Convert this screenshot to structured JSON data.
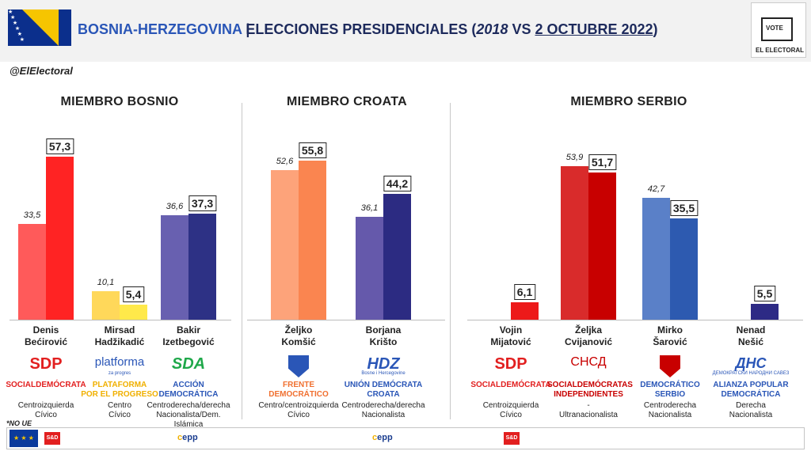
{
  "header": {
    "country": "BOSNIA-HERZEGOVINA",
    "separator": "|",
    "title_main": "ELECCIONES PRESIDENCIALES (",
    "year_old": "2018",
    "vs": " VS ",
    "date_new": "2 OCTUBRE 2022",
    "close_paren": ")",
    "logo_vote": "VOTE",
    "logo_brand": "EL ELECTORAL",
    "handle": "@ElElectoral"
  },
  "chart_data": [
    {
      "type": "bar",
      "title": "MIEMBRO BOSNIO",
      "categories": [
        "Denis Bećirović",
        "Mirsad Hadžikadić",
        "Bakir Izetbegović"
      ],
      "series": [
        {
          "name": "2018",
          "values": [
            33.5,
            10.1,
            36.6
          ]
        },
        {
          "name": "2022",
          "values": [
            57.3,
            5.4,
            37.3
          ]
        }
      ],
      "ylim": [
        0,
        60
      ]
    },
    {
      "type": "bar",
      "title": "MIEMBRO CROATA",
      "categories": [
        "Željko Komšić",
        "Borjana Krišto"
      ],
      "series": [
        {
          "name": "2018",
          "values": [
            52.6,
            36.1
          ]
        },
        {
          "name": "2022",
          "values": [
            55.8,
            44.2
          ]
        }
      ],
      "ylim": [
        0,
        60
      ]
    },
    {
      "type": "bar",
      "title": "MIEMBRO SERBIO",
      "categories": [
        "Vojin Mijatović",
        "Željka Cvijanović",
        "Mirko Šarović",
        "Nenad Nešić"
      ],
      "series": [
        {
          "name": "2018",
          "values": [
            null,
            53.9,
            42.7,
            null
          ]
        },
        {
          "name": "2022",
          "values": [
            6.1,
            51.7,
            35.5,
            5.5
          ]
        }
      ],
      "ylim": [
        0,
        60
      ]
    }
  ],
  "labels": {
    "bosnio": {
      "v2018": [
        "33,5",
        "10,1",
        "36,6"
      ],
      "v2022": [
        "57,3",
        "5,4",
        "37,3"
      ],
      "cand_first": [
        "Denis",
        "Mirsad",
        "Bakir"
      ],
      "cand_last": [
        "Bećirović",
        "Hadžikadić",
        "Izetbegović"
      ],
      "logo": [
        "SDP",
        "platforma",
        "SDA"
      ],
      "logo_sub": [
        "",
        "za progres",
        ""
      ],
      "party_line1": [
        "SOCIALDEMÓCRATA",
        "PLATAFORMA",
        "ACCIÓN"
      ],
      "party_line2": [
        "",
        "POR EL PROGRESO",
        "DEMOCRÁTICA"
      ],
      "ideo_line1": [
        "Centroizquierda",
        "Centro",
        "Centroderecha/derecha"
      ],
      "ideo_line2": [
        "Cívico",
        "Cívico",
        "Nacionalista/Dem. Islámica"
      ]
    },
    "croata": {
      "v2018": [
        "52,6",
        "36,1"
      ],
      "v2022": [
        "55,8",
        "44,2"
      ],
      "cand_first": [
        "Željko",
        "Borjana"
      ],
      "cand_last": [
        "Komšić",
        "Krišto"
      ],
      "logo": [
        "",
        "HDZ"
      ],
      "logo_sub": [
        "",
        "Bosne i Hercegovine"
      ],
      "party_line1": [
        "FRENTE",
        "UNIÓN DEMÓCRATA"
      ],
      "party_line2": [
        "DEMOCRÁTICO",
        "CROATA"
      ],
      "ideo_line1": [
        "Centro/centroizquierda",
        "Centroderecha/derecha"
      ],
      "ideo_line2": [
        "Cívico",
        "Nacionalista"
      ]
    },
    "serbio": {
      "v2018": [
        "",
        "53,9",
        "42,7",
        ""
      ],
      "v2022": [
        "6,1",
        "51,7",
        "35,5",
        "5,5"
      ],
      "cand_first": [
        "Vojin",
        "Željka",
        "Mirko",
        "Nenad"
      ],
      "cand_last": [
        "Mijatović",
        "Cvijanović",
        "Šarović",
        "Nešić"
      ],
      "logo": [
        "SDP",
        "СНСД",
        "",
        "ДНС"
      ],
      "logo_sub": [
        "",
        "",
        "",
        "ДЕМОКРАТСКИ НАРОДНИ САВЕЗ"
      ],
      "party_line1": [
        "SOCIALDEMÓCRATA",
        "SOCIALDEMÓCRATAS",
        "DEMOCRÁTICO",
        "ALIANZA POPULAR"
      ],
      "party_line2": [
        "",
        "INDEPENDIENTES",
        "SERBIO",
        "DEMOCRÁTICA"
      ],
      "ideo_line1": [
        "Centroizquierda",
        "-",
        "Centroderecha",
        "Derecha"
      ],
      "ideo_line2": [
        "Cívico",
        "Ultranacionalista",
        "Nacionalista",
        "Nacionalista"
      ]
    }
  },
  "colors": {
    "bosnio_2018": [
      "#ff5a5a",
      "#ffd85a",
      "#6860b0"
    ],
    "bosnio_2022": [
      "#ff2323",
      "#ffe94a",
      "#2d3185"
    ],
    "croata_2018": [
      "#fda37a",
      "#6559ab"
    ],
    "croata_2022": [
      "#fa8550",
      "#2c2b82"
    ],
    "serbio_2018": [
      "",
      "#d92b2b",
      "#5a80c8",
      ""
    ],
    "serbio_2022": [
      "#ed1a1a",
      "#c80000",
      "#2d5ab0",
      "#2d2a85"
    ],
    "party_text": [
      "#e21f1f",
      "#f0b000",
      "#2a56b7",
      "#f07030",
      "#2a56b7",
      "#e21f1f",
      "#c80000",
      "#2a56b7",
      "#2a56b7"
    ]
  },
  "footer": {
    "no_ue": "*NO UE",
    "sd": "S&D",
    "epp": "epp"
  }
}
